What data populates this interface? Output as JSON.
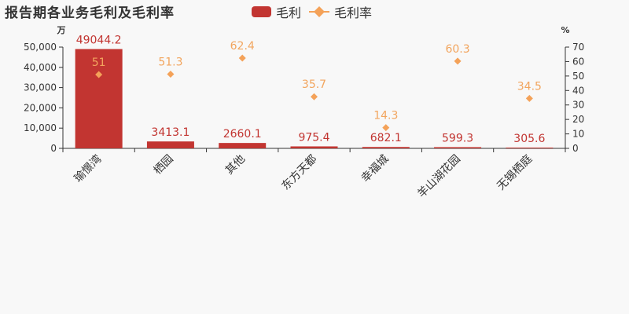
{
  "title": "报告期各业务毛利及毛利率",
  "legend": {
    "bar_label": "毛利",
    "line_label": "毛利率"
  },
  "colors": {
    "bar": "#c23531",
    "rate": "#f4a259",
    "rate_label": "#f2a55e",
    "axis": "#333333",
    "background": "#f8f8f8"
  },
  "chart_data": {
    "type": "bar",
    "title": "报告期各业务毛利及毛利率",
    "categories": [
      "瑜憬湾",
      "栖园",
      "其他",
      "东方天都",
      "幸福城",
      "羊山湖花园",
      "无锡栖庭"
    ],
    "series": [
      {
        "name": "毛利",
        "type": "bar",
        "axis": "left",
        "values": [
          49044.2,
          3413.1,
          2660.1,
          975.4,
          682.1,
          599.3,
          305.6
        ],
        "labels": [
          "49044.2",
          "3413.1",
          "2660.1",
          "975.4",
          "682.1",
          "599.3",
          "305.6"
        ]
      },
      {
        "name": "毛利率",
        "type": "scatter",
        "axis": "right",
        "values": [
          51,
          51.3,
          62.4,
          35.7,
          14.3,
          60.3,
          34.5
        ],
        "labels": [
          "51",
          "51.3",
          "62.4",
          "35.7",
          "14.3",
          "60.3",
          "34.5"
        ]
      }
    ],
    "y_left": {
      "unit": "万",
      "min": 0,
      "max": 50000,
      "ticks": [
        0,
        10000,
        20000,
        30000,
        40000,
        50000
      ],
      "tick_labels": [
        "0",
        "10,000",
        "20,000",
        "30,000",
        "40,000",
        "50,000"
      ]
    },
    "y_right": {
      "unit": "%",
      "min": 0,
      "max": 70,
      "ticks": [
        0,
        10,
        20,
        30,
        40,
        50,
        60,
        70
      ],
      "tick_labels": [
        "0",
        "10",
        "20",
        "30",
        "40",
        "50",
        "60",
        "70"
      ]
    },
    "grid": false,
    "legend_position": "top-center"
  }
}
